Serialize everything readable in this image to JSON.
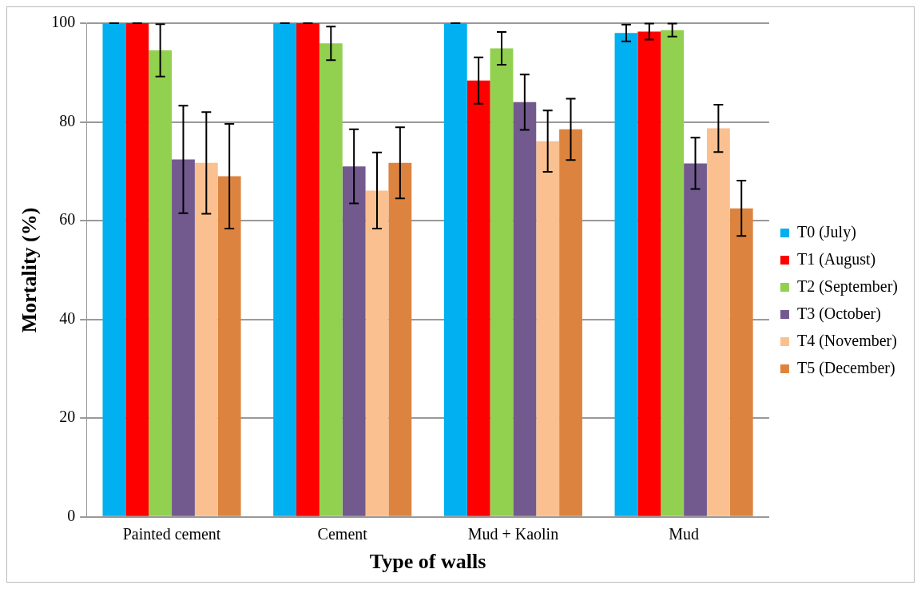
{
  "chart_data": {
    "type": "bar",
    "xlabel": "Type of walls",
    "ylabel": "Mortality (%)",
    "categories": [
      "Painted cement",
      "Cement",
      "Mud + Kaolin",
      "Mud"
    ],
    "series": [
      {
        "name": "T0 (July)",
        "color": "#00b0f0",
        "values": [
          100,
          100,
          100,
          98.0
        ],
        "errors": [
          0,
          0,
          0,
          1.7
        ]
      },
      {
        "name": "T1 (August)",
        "color": "#ff0000",
        "values": [
          100,
          100,
          88.4,
          98.3
        ],
        "errors": [
          0,
          0,
          4.7,
          1.6
        ]
      },
      {
        "name": "T2 (September)",
        "color": "#92d050",
        "values": [
          94.5,
          95.9,
          94.9,
          98.6
        ],
        "errors": [
          5.3,
          3.4,
          3.3,
          1.3
        ]
      },
      {
        "name": "T3 (October)",
        "color": "#725a8f",
        "values": [
          72.4,
          71.0,
          84.0,
          71.6
        ],
        "errors": [
          10.9,
          7.5,
          5.6,
          5.2
        ]
      },
      {
        "name": "T4 (November)",
        "color": "#fac090",
        "values": [
          71.7,
          66.1,
          76.1,
          78.7
        ],
        "errors": [
          10.3,
          7.7,
          6.2,
          4.8
        ]
      },
      {
        "name": "T5 (December)",
        "color": "#dc843f",
        "values": [
          69.0,
          71.7,
          78.5,
          62.5
        ],
        "errors": [
          10.6,
          7.2,
          6.2,
          5.6
        ]
      }
    ],
    "ylim": [
      0,
      100
    ],
    "yticks": [
      0,
      20,
      40,
      60,
      80,
      100
    ],
    "grid": "y",
    "legend": "right"
  }
}
